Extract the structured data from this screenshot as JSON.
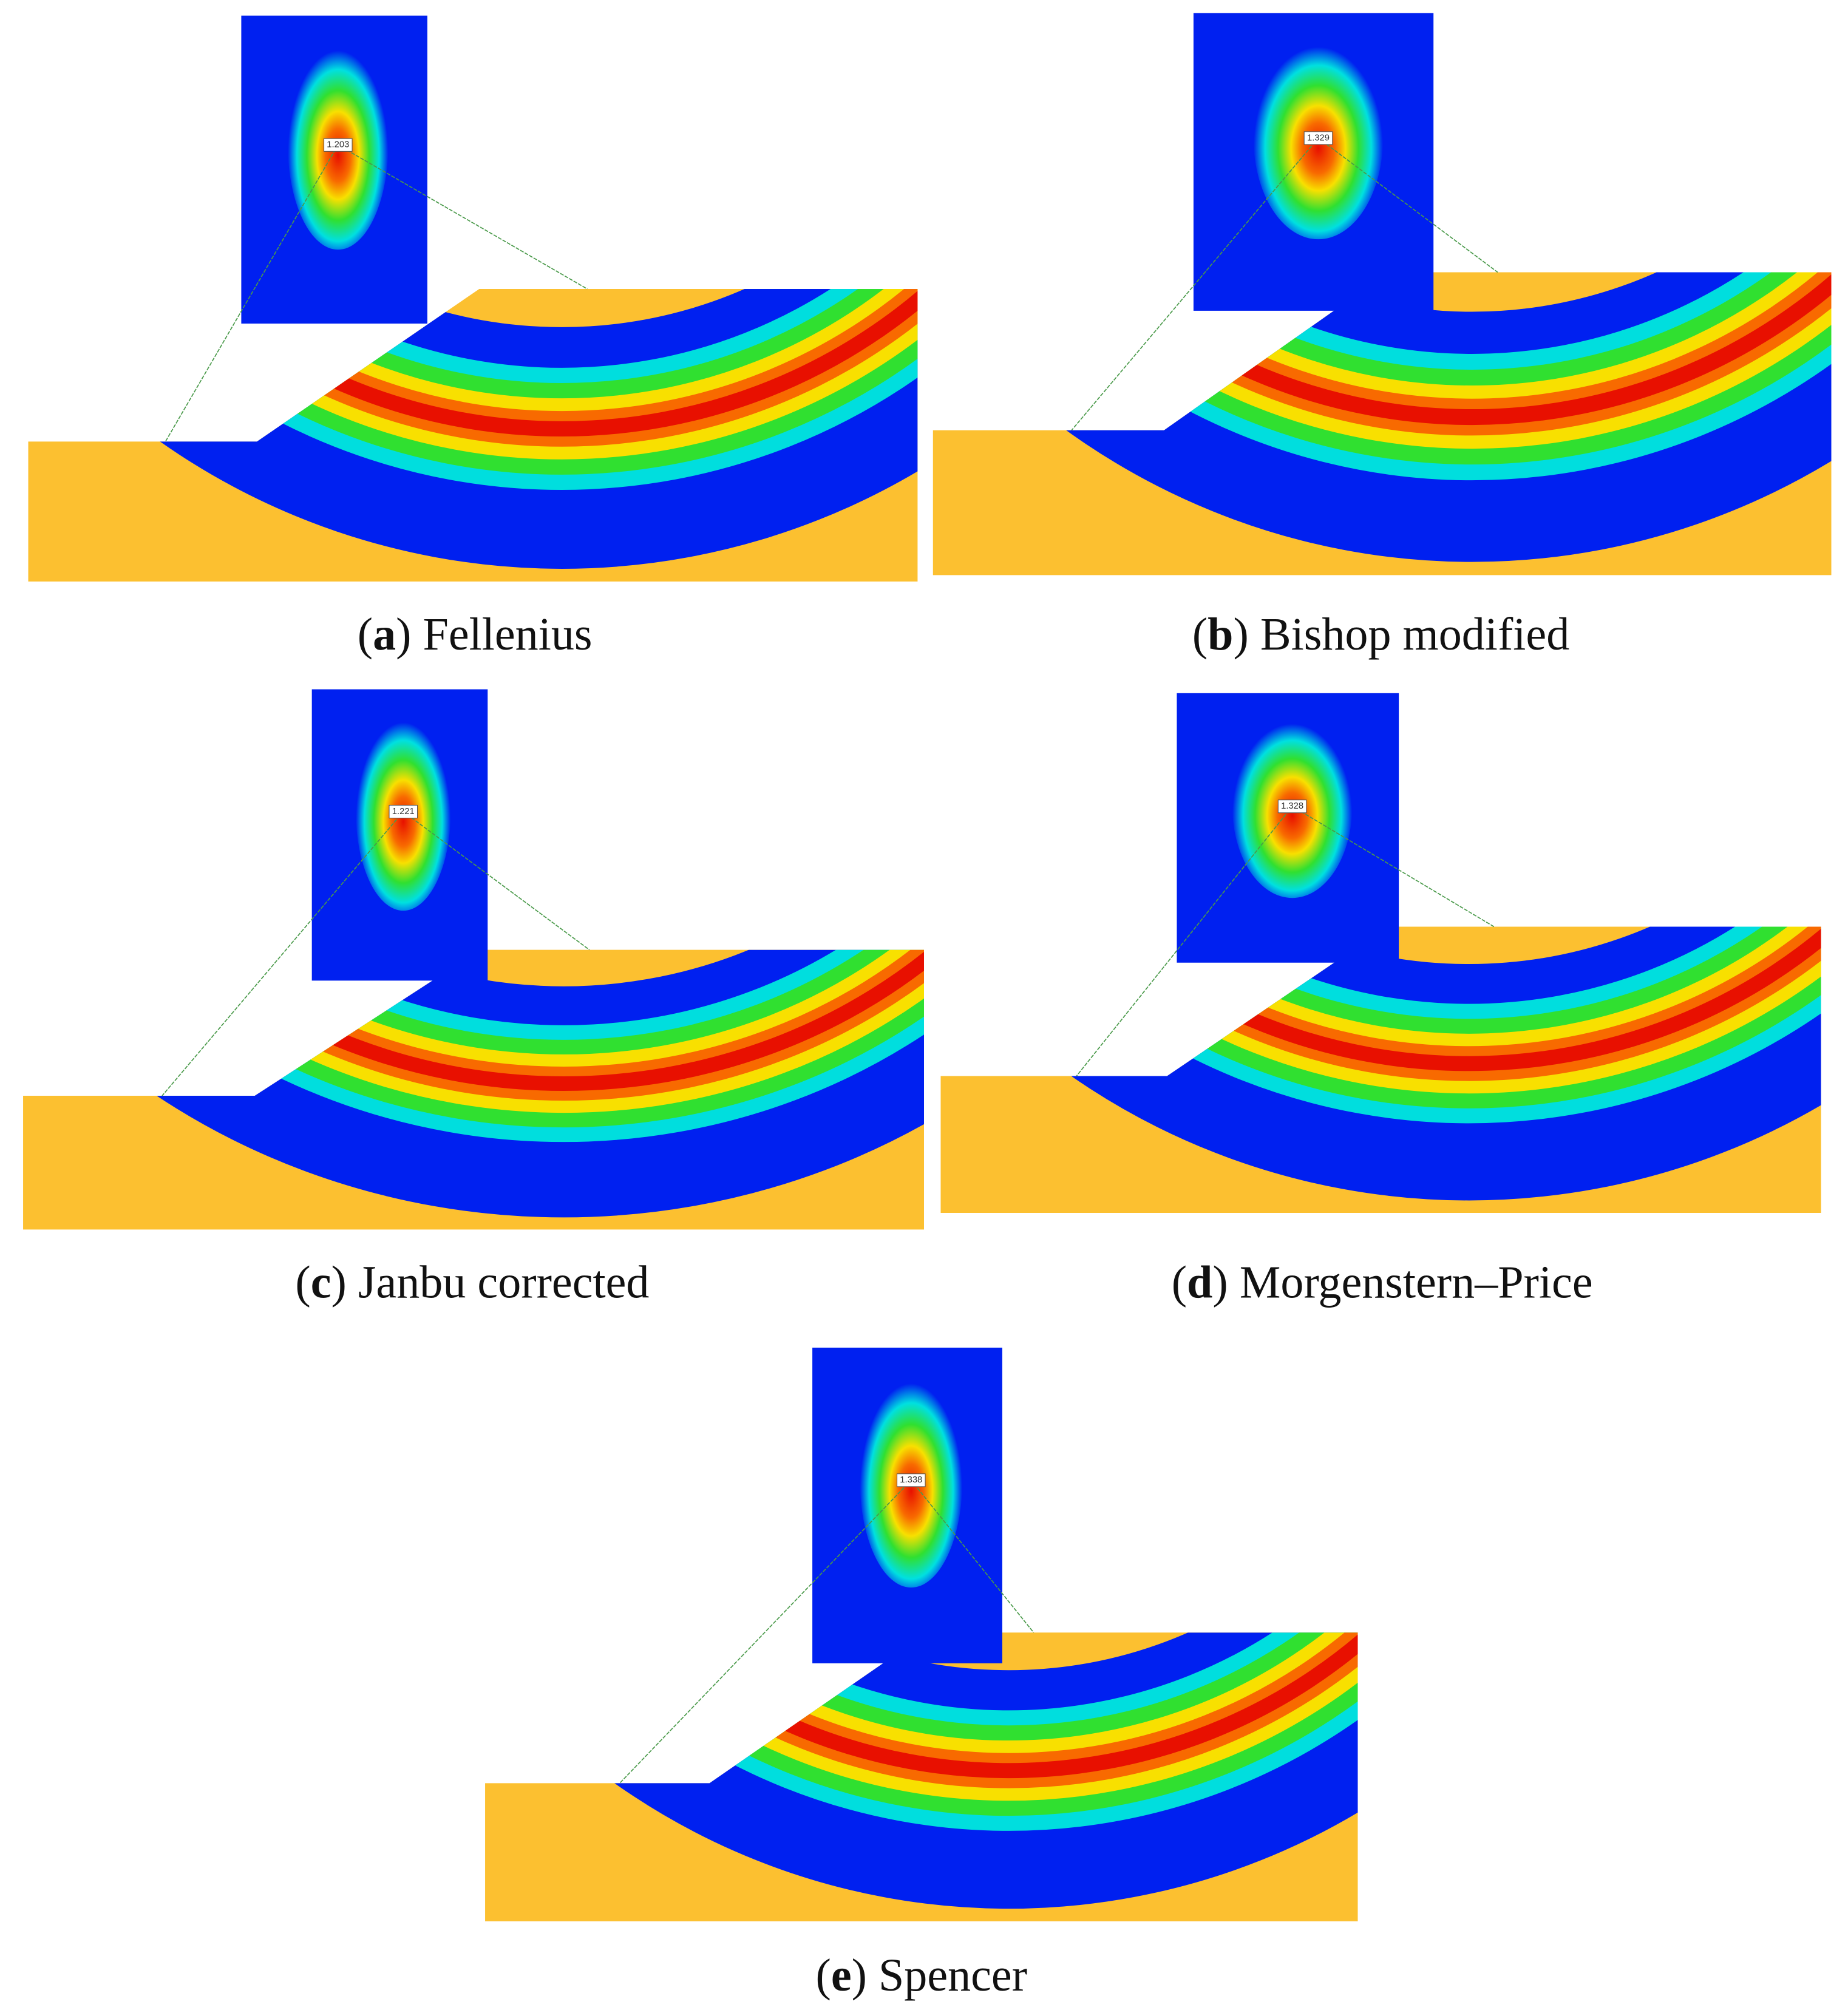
{
  "panels": [
    {
      "label": "a",
      "caption_open": "(",
      "caption_rest": ") Fellenius",
      "fs": "1.203"
    },
    {
      "label": "b",
      "caption_open": "(",
      "caption_rest": ") Bishop modified",
      "fs": "1.329"
    },
    {
      "label": "c",
      "caption_open": "(",
      "caption_rest": ") Janbu corrected",
      "fs": "1.221"
    },
    {
      "label": "d",
      "caption_open": "(",
      "caption_rest": ") Morgenstern–Price",
      "fs": "1.328"
    },
    {
      "label": "e",
      "caption_open": "(",
      "caption_rest": ") Spencer",
      "fs": "1.338"
    }
  ]
}
